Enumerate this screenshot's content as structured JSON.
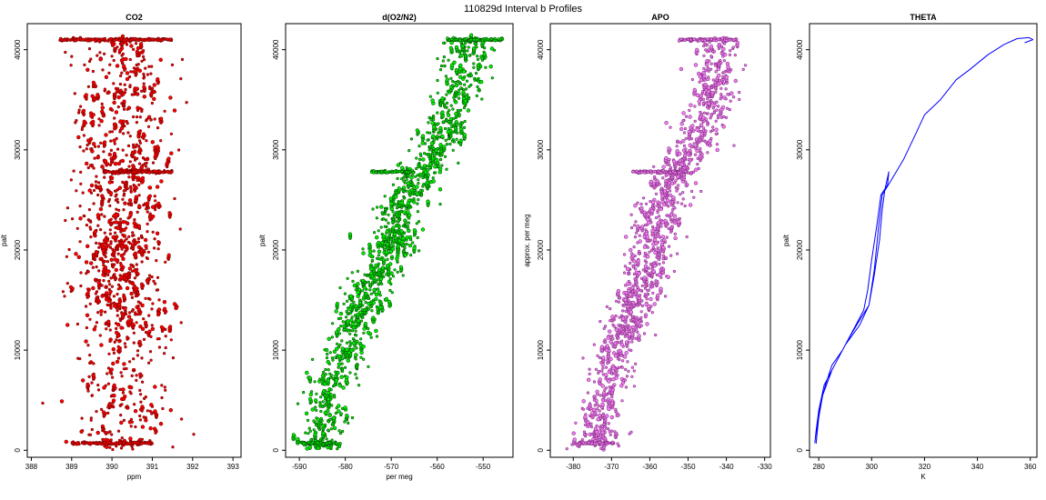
{
  "figure": {
    "title": "110829d   Interval b Profiles"
  },
  "chart_data": [
    {
      "type": "scatter",
      "title": "CO2",
      "xlabel": "ppm",
      "ylabel": "palt",
      "xlim": [
        387.9,
        393.2
      ],
      "ylim": [
        -700,
        42600
      ],
      "xticks": [
        388,
        389,
        390,
        391,
        392,
        393
      ],
      "yticks": [
        0,
        10000,
        20000,
        30000,
        40000
      ],
      "colors": {
        "fill": "#ff0000",
        "edge": "#7a0000"
      },
      "series": [
        {
          "center": [
            [
              0,
              390.2
            ],
            [
              40000,
              390.3
            ]
          ],
          "spread": 0.55,
          "bands": [
            [
              0,
              12000,
              0.7
            ],
            [
              12000,
              26500,
              1.3
            ],
            [
              26500,
              36000,
              1.0
            ],
            [
              36000,
              41200,
              0.85
            ]
          ],
          "shelves": [
            [
              700,
              389.0,
              391.0
            ],
            [
              27800,
              389.8,
              391.5
            ],
            [
              41000,
              388.7,
              391.5
            ]
          ]
        }
      ]
    },
    {
      "type": "scatter",
      "title": "d(O2/N2)",
      "xlabel": "per meg",
      "ylabel": "palt",
      "xlim": [
        -593,
        -543.5
      ],
      "ylim": [
        -700,
        42600
      ],
      "xticks": [
        -590,
        -580,
        -570,
        -560,
        -550
      ],
      "yticks": [
        0,
        10000,
        20000,
        30000,
        40000
      ],
      "colors": {
        "fill": "#00ee00",
        "edge": "#005500"
      },
      "series": [
        {
          "center": [
            [
              0,
              -586
            ],
            [
              5000,
              -584
            ],
            [
              10000,
              -580
            ],
            [
              15000,
              -576
            ],
            [
              20000,
              -570
            ],
            [
              25000,
              -567
            ],
            [
              28000,
              -563
            ],
            [
              32000,
              -558
            ],
            [
              36000,
              -555
            ],
            [
              41000,
              -553
            ]
          ],
          "spread": 2.5,
          "bands": [
            [
              0,
              12000,
              0.9
            ],
            [
              12000,
              28000,
              1.2
            ],
            [
              28000,
              41200,
              1.0
            ]
          ],
          "shelves": [
            [
              700,
              -589.5,
              -581.0
            ],
            [
              27800,
              -574.5,
              -565.0
            ],
            [
              41000,
              -558.0,
              -545.5
            ]
          ]
        }
      ]
    },
    {
      "type": "scatter",
      "title": "APO",
      "xlabel": "",
      "ylabel": "approx. per meg",
      "xlim": [
        -386,
        -328.5
      ],
      "ylim": [
        -700,
        42600
      ],
      "xticks": [
        -380,
        -370,
        -360,
        -350,
        -340,
        -330
      ],
      "yticks": [
        0,
        10000,
        20000,
        30000,
        40000
      ],
      "colors": {
        "fill": "#ee82ee",
        "edge": "#8a2d8a"
      },
      "series": [
        {
          "center": [
            [
              0,
              -374
            ],
            [
              5000,
              -372
            ],
            [
              10000,
              -368
            ],
            [
              15000,
              -364
            ],
            [
              20000,
              -359
            ],
            [
              25000,
              -356
            ],
            [
              28000,
              -353
            ],
            [
              32000,
              -346
            ],
            [
              36000,
              -343
            ],
            [
              41000,
              -342
            ]
          ],
          "spread": 3.0,
          "bands": [
            [
              0,
              12000,
              0.9
            ],
            [
              12000,
              28000,
              1.2
            ],
            [
              28000,
              41200,
              1.0
            ]
          ],
          "shelves": [
            [
              700,
              -379.0,
              -369.0
            ],
            [
              27800,
              -364.5,
              -350.5
            ],
            [
              41000,
              -352.5,
              -337.0
            ]
          ]
        }
      ]
    },
    {
      "type": "line",
      "title": "THETA",
      "xlabel": "K",
      "ylabel": "palt",
      "xlim": [
        276.5,
        362.5
      ],
      "ylim": [
        -700,
        42600
      ],
      "xticks": [
        280,
        300,
        320,
        340,
        360
      ],
      "yticks": [
        0,
        10000,
        20000,
        30000,
        40000
      ],
      "colors": {
        "line": "#0000ff"
      },
      "series": [
        {
          "points": [
            [
              278.5,
              700
            ],
            [
              279.0,
              2000
            ],
            [
              280.0,
              4000
            ],
            [
              282.0,
              6500
            ],
            [
              285.0,
              8000
            ],
            [
              288.0,
              9500
            ],
            [
              291.0,
              11000
            ],
            [
              295.0,
              12800
            ],
            [
              299.0,
              14500
            ],
            [
              301.0,
              17500
            ],
            [
              303.0,
              21000
            ],
            [
              304.0,
              24000
            ],
            [
              305.0,
              26000
            ],
            [
              306.5,
              27800
            ],
            [
              306.0,
              26500
            ],
            [
              303.5,
              25500
            ],
            [
              302.0,
              22500
            ],
            [
              300.0,
              19000
            ],
            [
              298.5,
              16000
            ],
            [
              297.0,
              14000
            ],
            [
              293.0,
              12000
            ],
            [
              289.0,
              10000
            ],
            [
              285.0,
              8500
            ],
            [
              282.5,
              6500
            ],
            [
              280.5,
              4500
            ],
            [
              279.5,
              2000
            ],
            [
              279.0,
              700
            ],
            [
              279.5,
              2500
            ],
            [
              281.5,
              5500
            ],
            [
              285.0,
              8000
            ],
            [
              290.0,
              10500
            ],
            [
              295.5,
              12500
            ],
            [
              299.0,
              14500
            ],
            [
              301.0,
              18000
            ],
            [
              302.5,
              22000
            ],
            [
              304.0,
              25500
            ],
            [
              307.0,
              26800
            ],
            [
              312.0,
              29000
            ],
            [
              316.5,
              31500
            ],
            [
              320.0,
              33500
            ],
            [
              326.0,
              35000
            ],
            [
              332.0,
              37000
            ],
            [
              337.0,
              38000
            ],
            [
              344.0,
              39500
            ],
            [
              350.0,
              40500
            ],
            [
              355.0,
              41100
            ],
            [
              359.5,
              41200
            ],
            [
              361.0,
              41000
            ],
            [
              358.0,
              40700
            ],
            [
              360.0,
              40900
            ]
          ]
        }
      ]
    }
  ]
}
